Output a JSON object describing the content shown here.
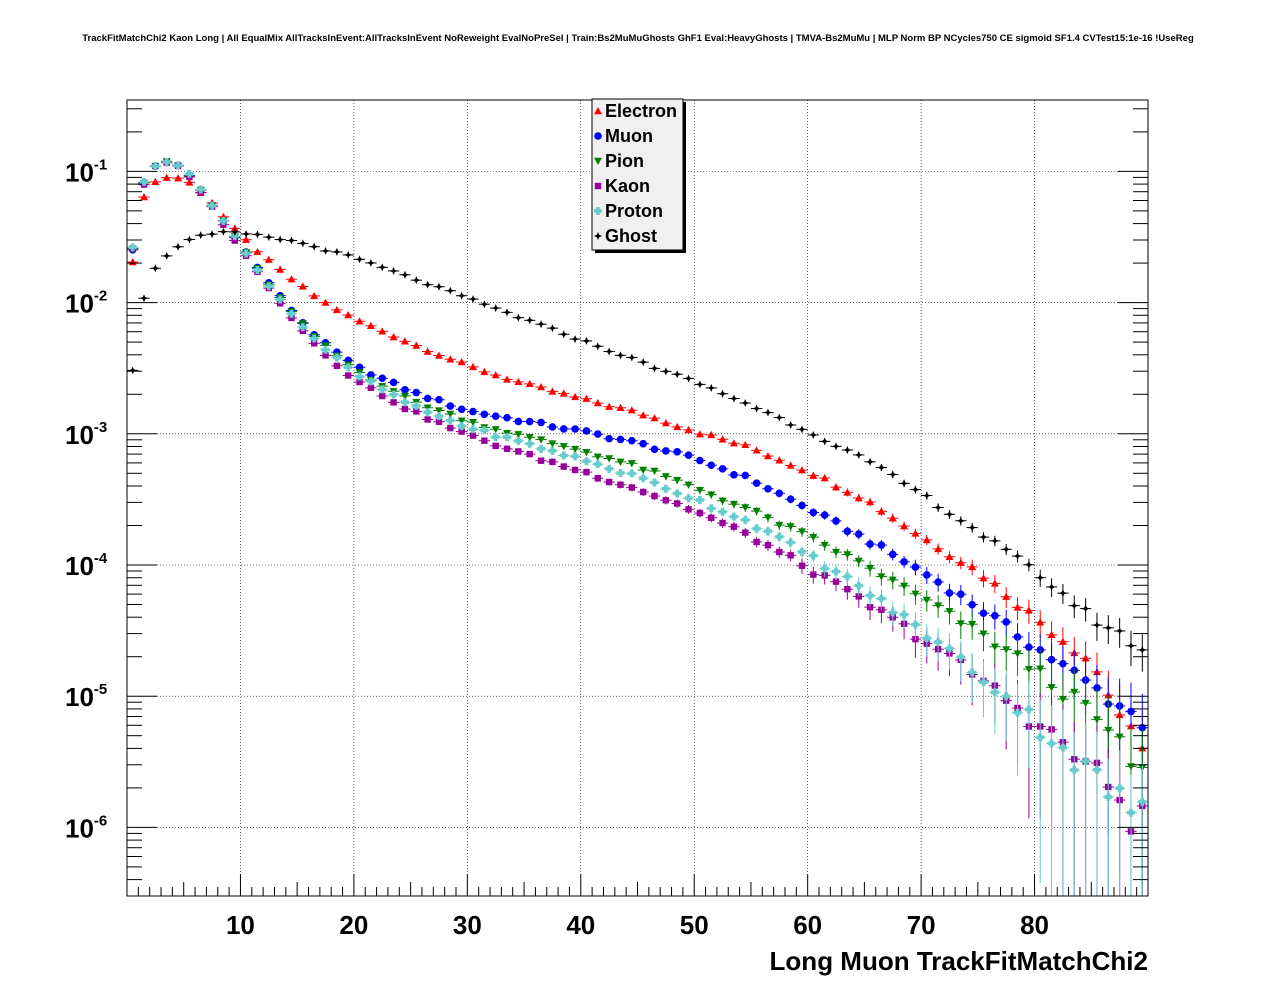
{
  "chart_data": {
    "type": "scatter",
    "title": "TrackFitMatchChi2 Kaon Long | All EqualMix AllTracksInEvent:AllTracksInEvent NoReweight EvalNoPreSel | Train:Bs2MuMuGhosts GhF1 Eval:HeavyGhosts | TMVA-Bs2MuMu | MLP Norm BP NCycles750 CE sigmoid SF1.4 CVTest15:1e-16 !UseReg",
    "xlabel": "Long Muon TrackFitMatchChi2",
    "ylabel": "",
    "xlim": [
      0,
      90
    ],
    "ylim": [
      3e-07,
      0.35
    ],
    "yscale": "log",
    "grid": true,
    "legend_position": "top-center",
    "x_ticks": [
      10,
      20,
      30,
      40,
      50,
      60,
      70,
      80
    ],
    "y_ticks": [
      {
        "value": 1e-06,
        "base": "10",
        "exp": "-6"
      },
      {
        "value": 1e-05,
        "base": "10",
        "exp": "-5"
      },
      {
        "value": 0.0001,
        "base": "10",
        "exp": "-4"
      },
      {
        "value": 0.001,
        "base": "10",
        "exp": "-3"
      },
      {
        "value": 0.01,
        "base": "10",
        "exp": "-2"
      },
      {
        "value": 0.1,
        "base": "10",
        "exp": "-1"
      }
    ],
    "series": [
      {
        "name": "Electron",
        "color": "#ff0000",
        "marker": "triangle-up",
        "anchors": [
          [
            0.5,
            0.02
          ],
          [
            1.5,
            0.065
          ],
          [
            2.5,
            0.083
          ],
          [
            3.5,
            0.09
          ],
          [
            4.5,
            0.089
          ],
          [
            5.5,
            0.082
          ],
          [
            6.5,
            0.07
          ],
          [
            7.5,
            0.058
          ],
          [
            8.5,
            0.045
          ],
          [
            9.5,
            0.036
          ],
          [
            11,
            0.027
          ],
          [
            13,
            0.019
          ],
          [
            15,
            0.014
          ],
          [
            17,
            0.0105
          ],
          [
            20,
            0.0075
          ],
          [
            25,
            0.0049
          ],
          [
            30,
            0.0033
          ],
          [
            35,
            0.0024
          ],
          [
            40,
            0.00185
          ],
          [
            45,
            0.00145
          ],
          [
            50,
            0.00105
          ],
          [
            55,
            0.00078
          ],
          [
            60,
            0.00052
          ],
          [
            65,
            0.00032
          ],
          [
            70,
            0.000165
          ],
          [
            75,
            9e-05
          ],
          [
            80,
            4e-05
          ],
          [
            85,
            1.85e-05
          ],
          [
            89.5,
            3.5e-06
          ]
        ]
      },
      {
        "name": "Muon",
        "color": "#0000ff",
        "marker": "circle",
        "anchors": [
          [
            0.5,
            0.025
          ],
          [
            1.5,
            0.082
          ],
          [
            2.5,
            0.11
          ],
          [
            3.5,
            0.118
          ],
          [
            4.5,
            0.11
          ],
          [
            5.5,
            0.092
          ],
          [
            6.5,
            0.072
          ],
          [
            7.5,
            0.055
          ],
          [
            8.5,
            0.042
          ],
          [
            9.5,
            0.032
          ],
          [
            11,
            0.021
          ],
          [
            13,
            0.0125
          ],
          [
            15,
            0.0078
          ],
          [
            17,
            0.0052
          ],
          [
            20,
            0.0033
          ],
          [
            25,
            0.0021
          ],
          [
            30,
            0.0015
          ],
          [
            35,
            0.00125
          ],
          [
            40,
            0.00105
          ],
          [
            45,
            0.00085
          ],
          [
            50,
            0.00065
          ],
          [
            55,
            0.00045
          ],
          [
            60,
            0.00027
          ],
          [
            65,
            0.00016
          ],
          [
            70,
            9e-05
          ],
          [
            75,
            4.8e-05
          ],
          [
            80,
            2.4e-05
          ],
          [
            85,
            1.2e-05
          ],
          [
            89.5,
            6.5e-06
          ]
        ]
      },
      {
        "name": "Pion",
        "color": "#008000",
        "marker": "triangle-down",
        "anchors": [
          [
            0.5,
            0.026
          ],
          [
            1.5,
            0.082
          ],
          [
            2.5,
            0.11
          ],
          [
            3.5,
            0.117
          ],
          [
            4.5,
            0.11
          ],
          [
            5.5,
            0.092
          ],
          [
            6.5,
            0.072
          ],
          [
            7.5,
            0.055
          ],
          [
            8.5,
            0.042
          ],
          [
            9.5,
            0.032
          ],
          [
            11,
            0.0205
          ],
          [
            13,
            0.0122
          ],
          [
            15,
            0.0075
          ],
          [
            17,
            0.005
          ],
          [
            20,
            0.0031
          ],
          [
            25,
            0.0018
          ],
          [
            30,
            0.00125
          ],
          [
            35,
            0.00095
          ],
          [
            40,
            0.00075
          ],
          [
            45,
            0.00056
          ],
          [
            50,
            0.00039
          ],
          [
            55,
            0.00026
          ],
          [
            60,
            0.000165
          ],
          [
            65,
            0.0001
          ],
          [
            70,
            5.6e-05
          ],
          [
            75,
            3.1e-05
          ],
          [
            80,
            1.6e-05
          ],
          [
            85,
            7.5e-06
          ],
          [
            89.5,
            2.5e-06
          ]
        ]
      },
      {
        "name": "Kaon",
        "color": "#990099",
        "marker": "square",
        "anchors": [
          [
            0.5,
            0.026
          ],
          [
            1.5,
            0.08
          ],
          [
            2.5,
            0.108
          ],
          [
            3.5,
            0.116
          ],
          [
            4.5,
            0.108
          ],
          [
            5.5,
            0.09
          ],
          [
            6.5,
            0.07
          ],
          [
            7.5,
            0.053
          ],
          [
            8.5,
            0.04
          ],
          [
            9.5,
            0.03
          ],
          [
            11,
            0.0195
          ],
          [
            13,
            0.0115
          ],
          [
            15,
            0.0068
          ],
          [
            17,
            0.0044
          ],
          [
            20,
            0.0026
          ],
          [
            25,
            0.0015
          ],
          [
            30,
            0.00098
          ],
          [
            35,
            0.0007
          ],
          [
            40,
            0.00052
          ],
          [
            45,
            0.00038
          ],
          [
            50,
            0.00026
          ],
          [
            55,
            0.000165
          ],
          [
            60,
            9.5e-05
          ],
          [
            65,
            5.2e-05
          ],
          [
            70,
            2.8e-05
          ],
          [
            75,
            1.4e-05
          ],
          [
            80,
            6.5e-06
          ],
          [
            85,
            2.8e-06
          ],
          [
            89.5,
            1.1e-06
          ]
        ]
      },
      {
        "name": "Proton",
        "color": "#66cccc",
        "marker": "cross",
        "anchors": [
          [
            0.5,
            0.026
          ],
          [
            1.5,
            0.083
          ],
          [
            2.5,
            0.112
          ],
          [
            3.5,
            0.12
          ],
          [
            4.5,
            0.112
          ],
          [
            5.5,
            0.094
          ],
          [
            6.5,
            0.073
          ],
          [
            7.5,
            0.056
          ],
          [
            8.5,
            0.042
          ],
          [
            9.5,
            0.032
          ],
          [
            11,
            0.02
          ],
          [
            13,
            0.012
          ],
          [
            15,
            0.0073
          ],
          [
            17,
            0.0048
          ],
          [
            20,
            0.0029
          ],
          [
            25,
            0.00165
          ],
          [
            30,
            0.00112
          ],
          [
            35,
            0.00085
          ],
          [
            40,
            0.00064
          ],
          [
            45,
            0.00047
          ],
          [
            50,
            0.00032
          ],
          [
            55,
            0.00021
          ],
          [
            60,
            0.00012
          ],
          [
            65,
            6.5e-05
          ],
          [
            70,
            3.2e-05
          ],
          [
            75,
            1.5e-05
          ],
          [
            80,
            6.5e-06
          ],
          [
            85,
            2.5e-06
          ],
          [
            89.5,
            1.2e-06
          ]
        ]
      },
      {
        "name": "Ghost",
        "color": "#000000",
        "marker": "star",
        "anchors": [
          [
            0.5,
            0.0031
          ],
          [
            1.5,
            0.011
          ],
          [
            2.5,
            0.018
          ],
          [
            3.5,
            0.023
          ],
          [
            4.5,
            0.027
          ],
          [
            5.5,
            0.03
          ],
          [
            6.5,
            0.032
          ],
          [
            7.5,
            0.033
          ],
          [
            8.5,
            0.034
          ],
          [
            9.5,
            0.034
          ],
          [
            11,
            0.033
          ],
          [
            13,
            0.031
          ],
          [
            15,
            0.029
          ],
          [
            17,
            0.026
          ],
          [
            20,
            0.022
          ],
          [
            25,
            0.0155
          ],
          [
            30,
            0.0108
          ],
          [
            35,
            0.0075
          ],
          [
            40,
            0.0052
          ],
          [
            45,
            0.0036
          ],
          [
            50,
            0.0025
          ],
          [
            55,
            0.00165
          ],
          [
            60,
            0.00105
          ],
          [
            65,
            0.00064
          ],
          [
            70,
            0.00035
          ],
          [
            75,
            0.00018
          ],
          [
            80,
            9e-05
          ],
          [
            85,
            4e-05
          ],
          [
            89.5,
            2.3e-05
          ]
        ]
      }
    ]
  }
}
